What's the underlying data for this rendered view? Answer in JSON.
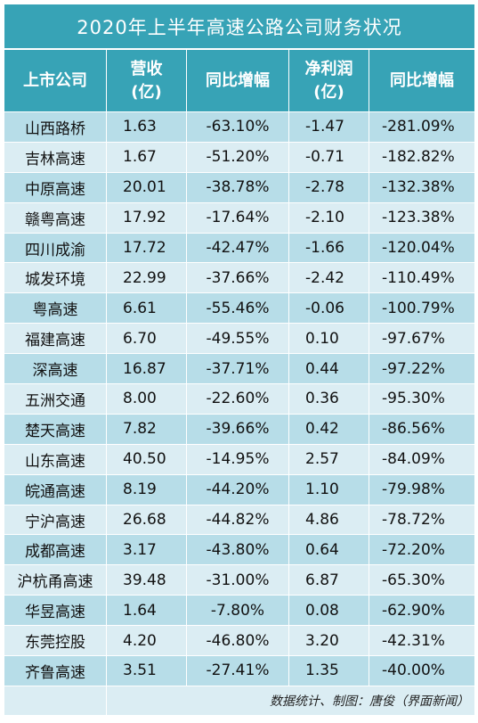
{
  "title": "2020年上半年高速公路公司财务状况",
  "headers": {
    "company": "上市公司",
    "revenue_line1": "营收",
    "revenue_line2": "(亿)",
    "revenue_yoy": "同比增幅",
    "net_profit_line1": "净利润",
    "net_profit_line2": "(亿)",
    "net_profit_yoy": "同比增幅"
  },
  "rows": [
    [
      "山西路桥",
      "1.63",
      "-63.10%",
      "-1.47",
      "-281.09%"
    ],
    [
      "吉林高速",
      "1.67",
      "-51.20%",
      "-0.71",
      "-182.82%"
    ],
    [
      "中原高速",
      "20.01",
      "-38.78%",
      "-2.78",
      "-132.38%"
    ],
    [
      "赣粤高速",
      "17.92",
      "-17.64%",
      "-2.10",
      "-123.38%"
    ],
    [
      "四川成渝",
      "17.72",
      "-42.47%",
      "-1.66",
      "-120.04%"
    ],
    [
      "城发环境",
      "22.99",
      "-37.66%",
      "-2.42",
      "-110.49%"
    ],
    [
      "粤高速",
      "6.61",
      "-55.46%",
      "-0.06",
      "-100.79%"
    ],
    [
      "福建高速",
      "6.70",
      "-49.55%",
      "0.10",
      "-97.67%"
    ],
    [
      "深高速",
      "16.87",
      "-37.71%",
      "0.44",
      "-97.22%"
    ],
    [
      "五洲交通",
      "8.00",
      "-22.60%",
      "0.36",
      "-95.30%"
    ],
    [
      "楚天高速",
      "7.82",
      "-39.66%",
      "0.42",
      "-86.56%"
    ],
    [
      "山东高速",
      "40.50",
      "-14.95%",
      "2.57",
      "-84.09%"
    ],
    [
      "皖通高速",
      "8.19",
      "-44.20%",
      "1.10",
      "-79.98%"
    ],
    [
      "宁沪高速",
      "26.68",
      "-44.82%",
      "4.86",
      "-78.72%"
    ],
    [
      "成都高速",
      "3.17",
      "-43.80%",
      "0.64",
      "-72.20%"
    ],
    [
      "沪杭甬高速",
      "39.48",
      "-31.00%",
      "6.87",
      "-65.30%"
    ],
    [
      "华昱高速",
      "1.64",
      "-7.80%",
      "0.08",
      "-62.90%"
    ],
    [
      "东莞控股",
      "4.20",
      "-46.80%",
      "3.20",
      "-42.31%"
    ],
    [
      "齐鲁高速",
      "3.51",
      "-27.41%",
      "1.35",
      "-40.00%"
    ]
  ],
  "footer_note": "数据统计、制图：唐俊（界面新闻）",
  "colors": {
    "header_bg": "#37a3b6",
    "row_dark": "#b7dde8",
    "row_light": "#dbedf3"
  }
}
